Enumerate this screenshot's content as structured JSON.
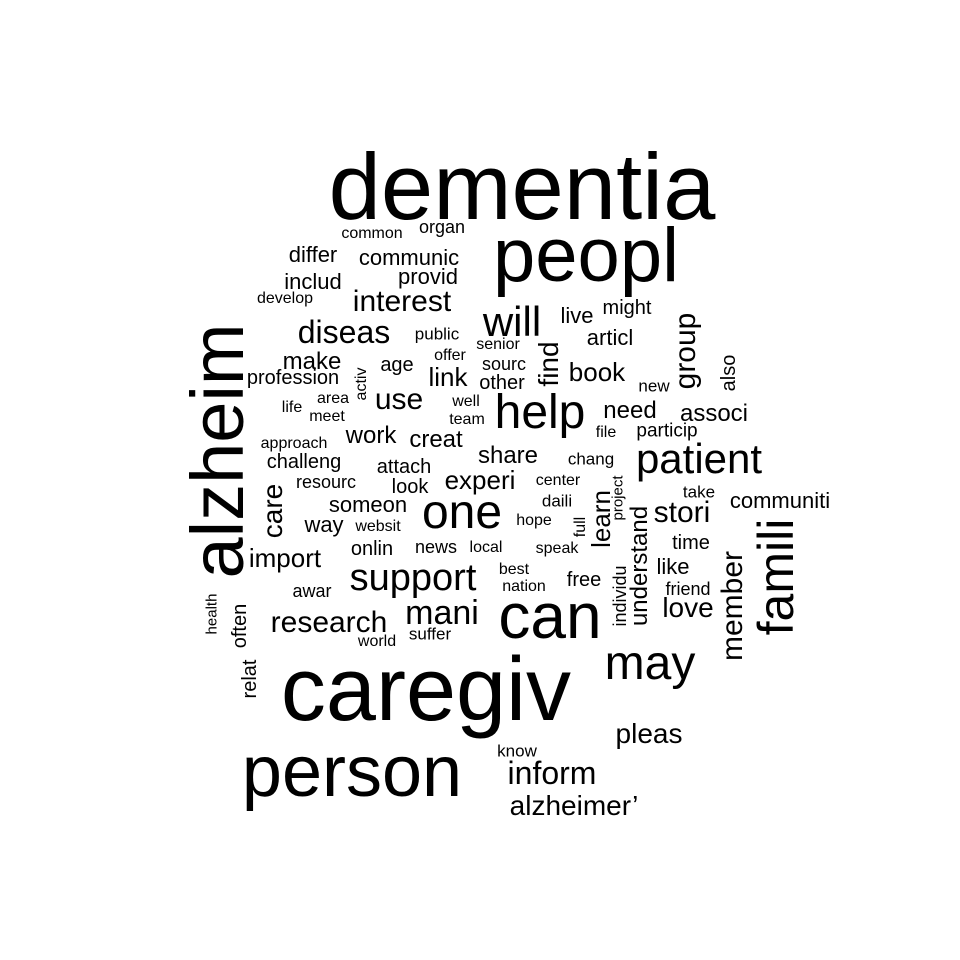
{
  "words": {
    "dementia": "dementia",
    "peopl": "peopl",
    "caregiv": "caregiv",
    "person": "person",
    "alzheim": "alzheim",
    "can": "can",
    "famili": "famili",
    "help": "help",
    "one": "one",
    "may": "may",
    "patient": "patient",
    "will": "will",
    "support": "support",
    "mani": "mani",
    "research": "research",
    "diseas": "diseas",
    "interest": "interest",
    "inform": "inform",
    "alzheimer": "alzheimer’",
    "pleas": "pleas",
    "member": "member",
    "group": "group",
    "stori": "stori",
    "love": "love",
    "use": "use",
    "care": "care",
    "find": "find",
    "learn": "learn",
    "understand": "understand",
    "experi": "experi",
    "import": "import",
    "link": "link",
    "book": "book",
    "share": "share",
    "need": "need",
    "associ": "associ",
    "work": "work",
    "creat": "creat",
    "make": "make",
    "someon": "someon",
    "way": "way",
    "articl": "articl",
    "communiti": "communiti",
    "differ": "differ",
    "communic": "communic",
    "provid": "provid",
    "includ": "includ",
    "challeng": "challeng",
    "resourc": "resourc",
    "attach": "attach",
    "look": "look",
    "onlin": "onlin",
    "news": "news",
    "live": "live",
    "might": "might",
    "age": "age",
    "profession": "profession",
    "time": "time",
    "like": "like",
    "free": "free",
    "awar": "awar",
    "also": "also",
    "sourc": "sourc",
    "other": "other",
    "suffer": "suffer",
    "world": "world",
    "often": "often",
    "relat": "relat",
    "particip": "particip",
    "chang": "chang",
    "individu": "individu",
    "friend": "friend",
    "take": "take",
    "new": "new",
    "public": "public",
    "offer": "offer",
    "senior": "senior",
    "well": "well",
    "team": "team",
    "activ": "activ",
    "area": "area",
    "meet": "meet",
    "life": "life",
    "approach": "approach",
    "websit": "websit",
    "local": "local",
    "speak": "speak",
    "hope": "hope",
    "daili": "daili",
    "center": "center",
    "full": "full",
    "project": "project",
    "best": "best",
    "nation": "nation",
    "file": "file",
    "health": "health",
    "know": "know",
    "common": "common",
    "organ": "organ",
    "develop": "develop"
  },
  "style": {
    "text_color": "#000000",
    "background": "#ffffff"
  }
}
